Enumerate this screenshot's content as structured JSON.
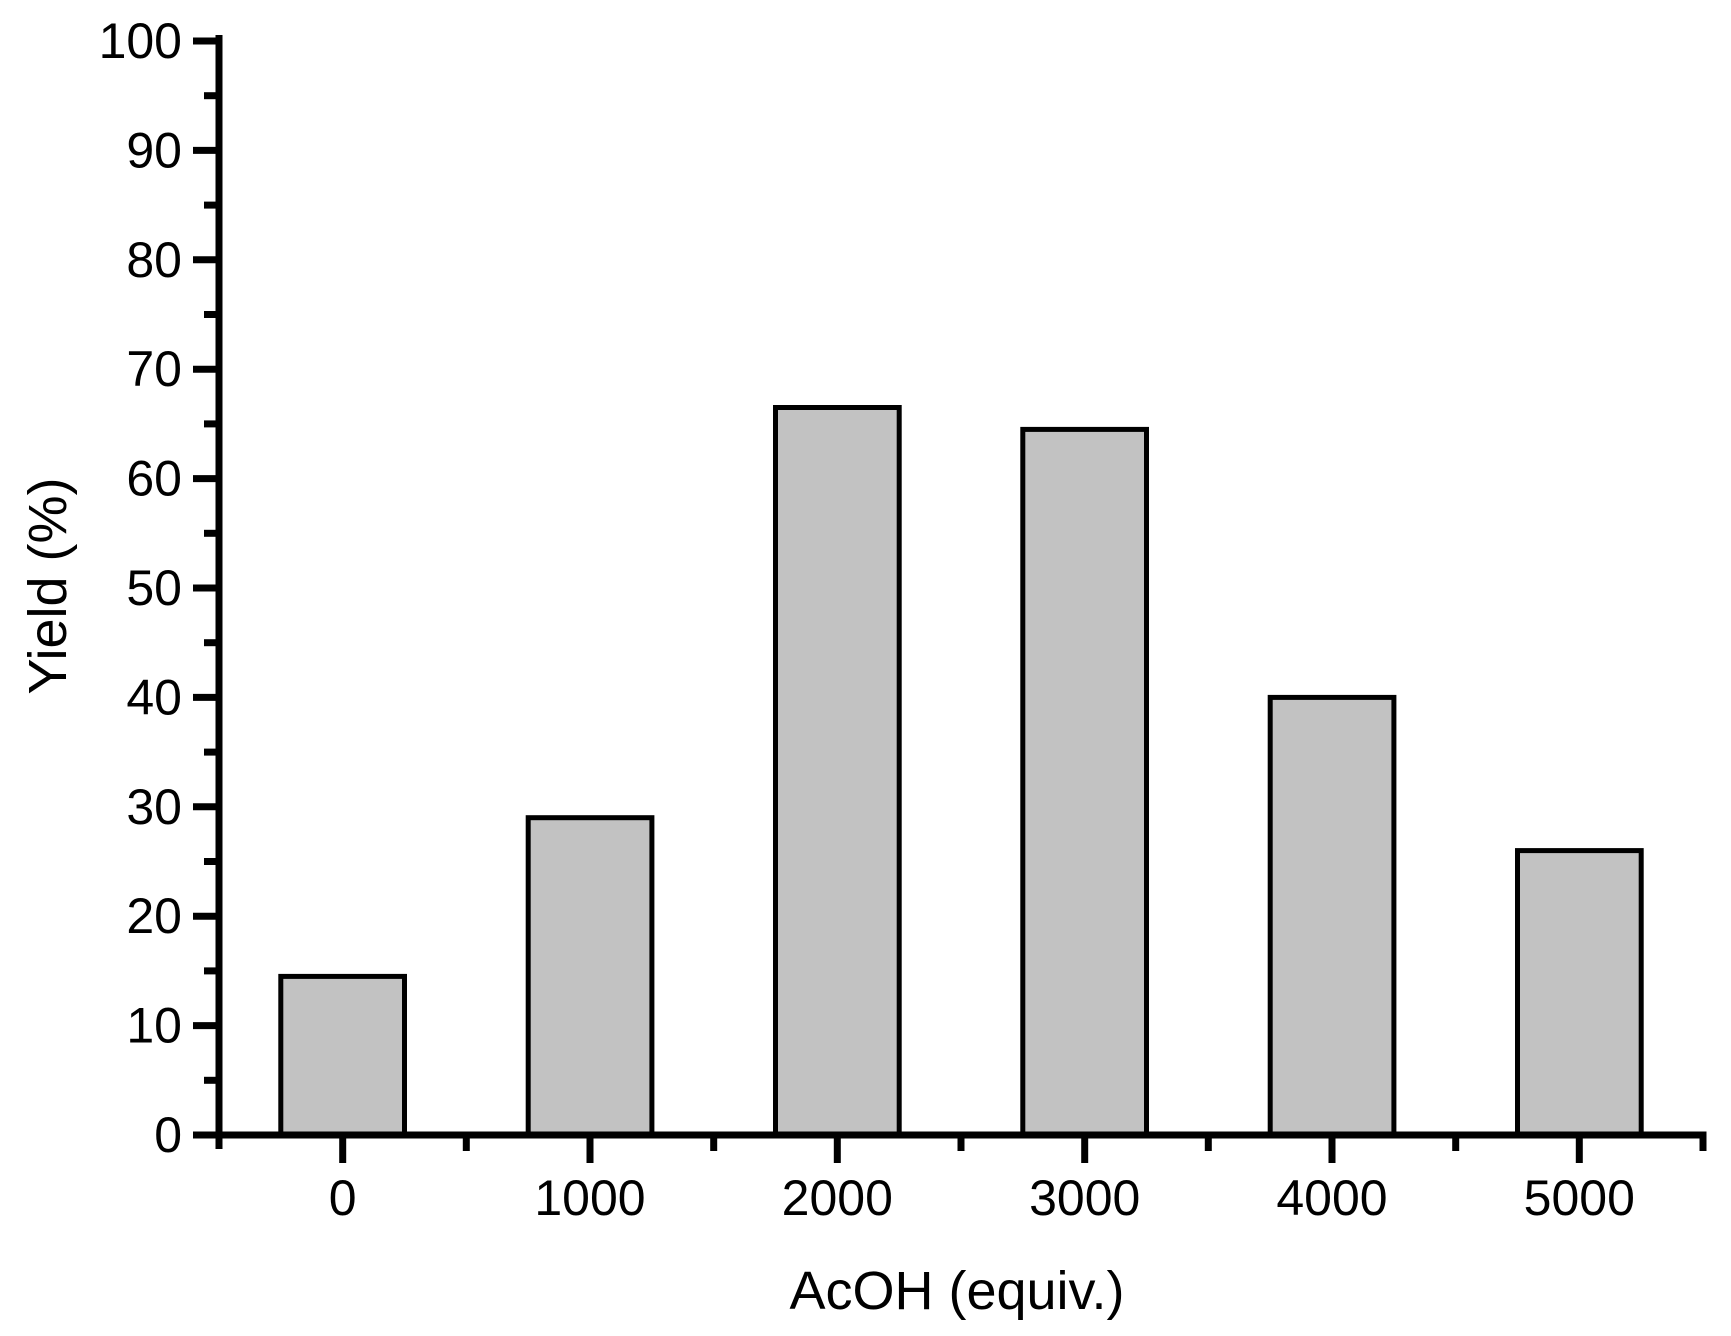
{
  "page": {
    "background": "#ffffff"
  },
  "chart_data": {
    "type": "bar",
    "xlabel": "AcOH (equiv.)",
    "ylabel": "Yield (%)",
    "categories": [
      "0",
      "1000",
      "2000",
      "3000",
      "4000",
      "5000"
    ],
    "values": [
      14.5,
      29,
      66.5,
      64.5,
      40,
      26
    ],
    "ylim": [
      0,
      100
    ],
    "ytick_major_step": 10,
    "ytick_minor_step": 5,
    "ytick_labels": [
      "0",
      "10",
      "20",
      "30",
      "40",
      "50",
      "60",
      "70",
      "80",
      "90",
      "100"
    ],
    "xtick_minor_at_category_boundaries": true,
    "grid": false,
    "colors": {
      "bar_fill": "#c2c2c2",
      "bar_border": "#000000",
      "axis": "#000000",
      "text": "#000000"
    }
  }
}
